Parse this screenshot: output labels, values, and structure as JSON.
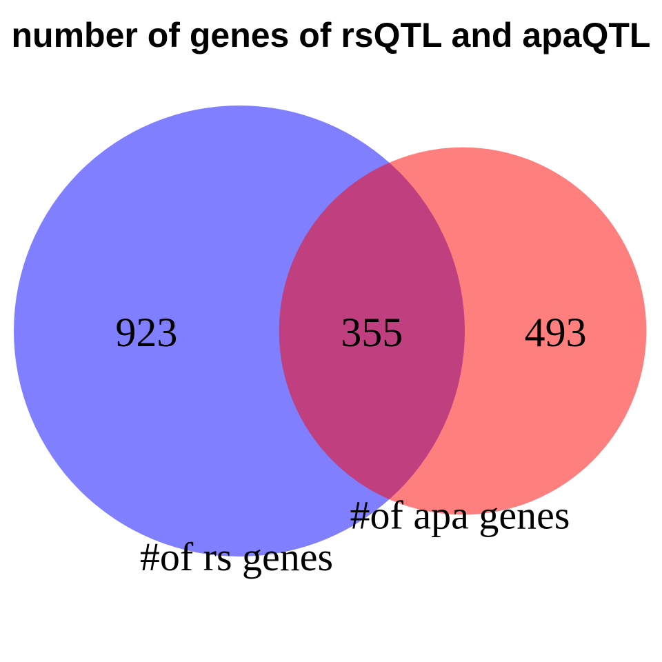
{
  "chart_data": {
    "type": "venn",
    "title": "number of genes of rsQTL and apaQTL",
    "sets": [
      {
        "name": "#of rs genes",
        "color": "#0000ff",
        "value": 923
      },
      {
        "name": "#of apa genes",
        "color": "#ff0000",
        "value": 493
      }
    ],
    "overlap": 355
  }
}
